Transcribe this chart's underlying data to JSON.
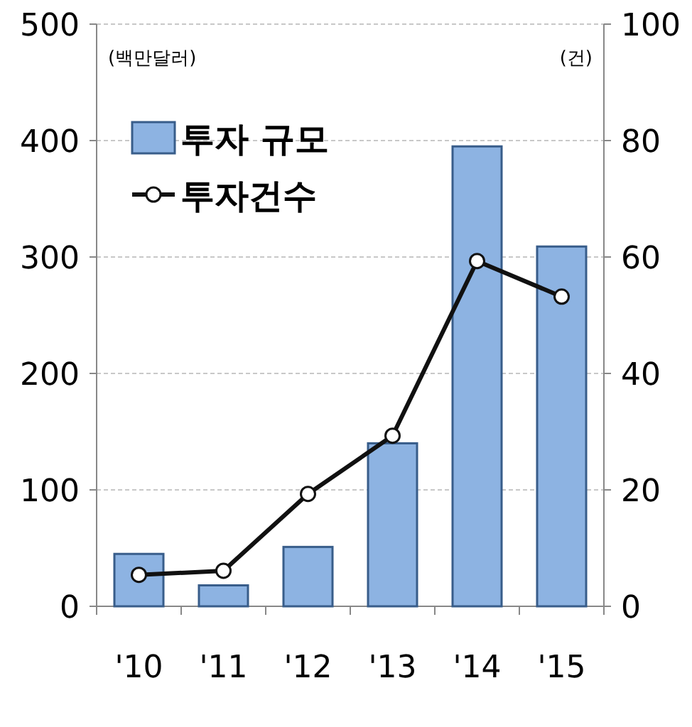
{
  "chart_data": {
    "type": "bar",
    "ylabel": "(백만달러)",
    "y2label": "(건)",
    "categories": [
      "'10",
      "'11",
      "'12",
      "'13",
      "'14",
      "'15"
    ],
    "series": [
      {
        "name": "투자 규모",
        "color": "#8db3e2",
        "values": [
          45,
          18,
          51,
          140,
          395,
          309
        ]
      },
      {
        "name": "투자건수",
        "type": "line",
        "axis": "y2",
        "color": "#111111",
        "marker": "circle",
        "values": [
          5.4,
          6.1,
          19.3,
          29.3,
          59.3,
          53.2
        ]
      }
    ],
    "ylim": [
      0,
      500
    ],
    "yticks": [
      0,
      100,
      200,
      300,
      400,
      500
    ],
    "y2lim": [
      0,
      100
    ],
    "y2ticks": [
      0,
      20,
      40,
      60,
      80,
      100
    ],
    "grid": "y",
    "legend": "top left"
  }
}
